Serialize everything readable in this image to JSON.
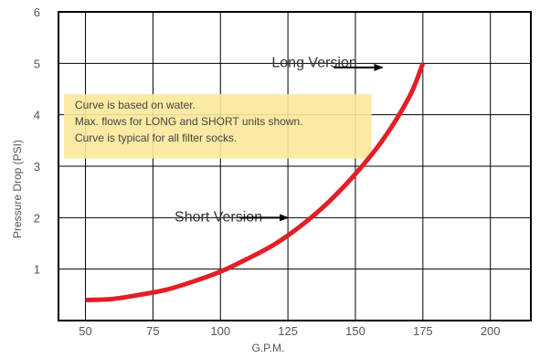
{
  "chart_data": {
    "type": "line",
    "xlabel": "G.P.M.",
    "ylabel": "Pressure Drop  (PSI)",
    "xlim": [
      40,
      215
    ],
    "ylim": [
      0,
      6
    ],
    "x_ticks": [
      50,
      75,
      100,
      125,
      150,
      175,
      200
    ],
    "y_ticks": [
      1,
      2,
      3,
      4,
      5,
      6
    ],
    "grid": true,
    "series": [
      {
        "color": "#e41e26",
        "x": [
          50,
          60,
          70,
          80,
          90,
          100,
          110,
          120,
          130,
          140,
          150,
          160,
          170,
          175
        ],
        "y": [
          0.4,
          0.42,
          0.5,
          0.6,
          0.76,
          0.95,
          1.2,
          1.48,
          1.85,
          2.3,
          2.85,
          3.5,
          4.35,
          5.0
        ]
      }
    ],
    "annotations": {
      "long": {
        "text": "Long  Version",
        "x": 119,
        "y": 5.0,
        "arrow_from": [
          142,
          4.92
        ],
        "arrow_to": [
          160,
          4.92
        ]
      },
      "short": {
        "text": "Short  Version",
        "x": 83,
        "y": 2.0,
        "arrow_from": [
          107,
          2.0
        ],
        "arrow_to": [
          125,
          2.0
        ]
      }
    },
    "note": {
      "lines": [
        "Curve is based on water.",
        "Max. flows for LONG and SHORT units shown.",
        "Curve is typical for all filter socks."
      ],
      "background": "#fbe89a",
      "x0": 42,
      "x1": 156,
      "y_top": 4.4,
      "y_bottom": 3.15
    }
  }
}
